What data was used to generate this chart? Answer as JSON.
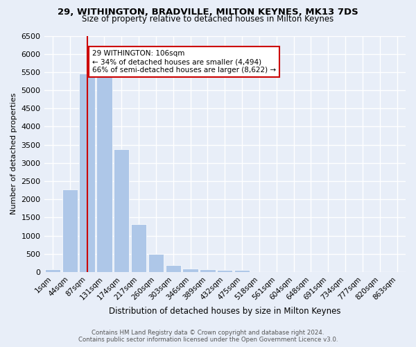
{
  "title": "29, WITHINGTON, BRADVILLE, MILTON KEYNES, MK13 7DS",
  "subtitle": "Size of property relative to detached houses in Milton Keynes",
  "xlabel": "Distribution of detached houses by size in Milton Keynes",
  "ylabel": "Number of detached properties",
  "footer_line1": "Contains HM Land Registry data © Crown copyright and database right 2024.",
  "footer_line2": "Contains public sector information licensed under the Open Government Licence v3.0.",
  "bar_labels": [
    "1sqm",
    "44sqm",
    "87sqm",
    "131sqm",
    "174sqm",
    "217sqm",
    "260sqm",
    "303sqm",
    "346sqm",
    "389sqm",
    "432sqm",
    "475sqm",
    "518sqm",
    "561sqm",
    "604sqm",
    "648sqm",
    "691sqm",
    "734sqm",
    "777sqm",
    "820sqm",
    "863sqm"
  ],
  "bar_values": [
    70,
    2270,
    5450,
    5460,
    3380,
    1310,
    490,
    190,
    100,
    80,
    50,
    60,
    0,
    0,
    0,
    0,
    0,
    0,
    0,
    0,
    0
  ],
  "bar_color": "#aec7e8",
  "bar_edge_color": "#ffffff",
  "background_color": "#e8eef8",
  "grid_color": "#ffffff",
  "annotation_text": "29 WITHINGTON: 106sqm\n← 34% of detached houses are smaller (4,494)\n66% of semi-detached houses are larger (8,622) →",
  "annotation_box_color": "#ffffff",
  "annotation_box_edge_color": "#cc0000",
  "vline_x": 2,
  "vline_color": "#cc0000",
  "ylim": [
    0,
    6500
  ],
  "yticks": [
    0,
    500,
    1000,
    1500,
    2000,
    2500,
    3000,
    3500,
    4000,
    4500,
    5000,
    5500,
    6000,
    6500
  ]
}
